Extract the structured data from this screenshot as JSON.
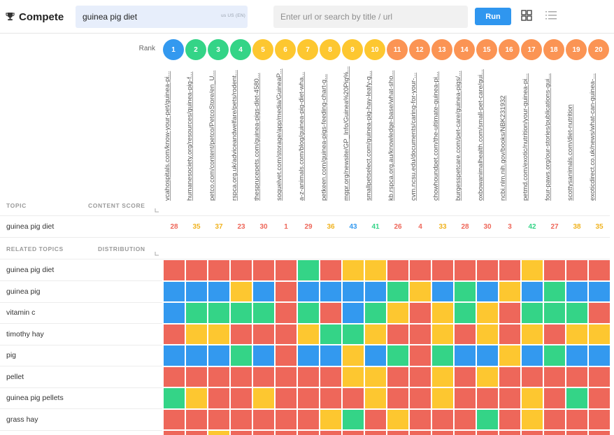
{
  "app": {
    "title": "Compete",
    "icon": "trophy-icon"
  },
  "search": {
    "keyword": "guinea pig diet",
    "locale": "us  US (EN)",
    "url_placeholder": "Enter url or search by title / url",
    "run_label": "Run"
  },
  "view_icons": [
    "grid-view-icon",
    "list-view-icon"
  ],
  "rank_label": "Rank",
  "colors": {
    "red": "#ee675a",
    "yellow": "#fdc730",
    "green": "#34d487",
    "blue": "#3399ef",
    "orange": "#fb9454",
    "accent": "#2f96ef"
  },
  "ranks": [
    {
      "n": "1",
      "color": "blue"
    },
    {
      "n": "2",
      "color": "green"
    },
    {
      "n": "3",
      "color": "green"
    },
    {
      "n": "4",
      "color": "green"
    },
    {
      "n": "5",
      "color": "yellow"
    },
    {
      "n": "6",
      "color": "yellow"
    },
    {
      "n": "7",
      "color": "yellow"
    },
    {
      "n": "8",
      "color": "yellow"
    },
    {
      "n": "9",
      "color": "yellow"
    },
    {
      "n": "10",
      "color": "yellow"
    },
    {
      "n": "11",
      "color": "orange"
    },
    {
      "n": "12",
      "color": "orange"
    },
    {
      "n": "13",
      "color": "orange"
    },
    {
      "n": "14",
      "color": "orange"
    },
    {
      "n": "15",
      "color": "orange"
    },
    {
      "n": "16",
      "color": "orange"
    },
    {
      "n": "17",
      "color": "orange"
    },
    {
      "n": "18",
      "color": "orange"
    },
    {
      "n": "19",
      "color": "orange"
    },
    {
      "n": "20",
      "color": "orange"
    }
  ],
  "urls": [
    "vcahospitals.com/know-your-pet/guinea-pi...",
    "humanesociety.org/resources/guinea-pig-f...",
    "petco.com/content/petco/PetcoStore/en_U...",
    "rspca.org.uk/adviceandwelfare/pets/rodent...",
    "thesprucepets.com/guinea-pigs-diet-4580...",
    "soquelvet.com/storage/app/media/GuineaP...",
    "a-z-animals.com/blog/guinea-pig-diet-wha...",
    "petkeen.com/guinea-pigs-feeding-chart-g...",
    "mgpr.org/newsite/GP_Info/Guinea%20Pig%...",
    "smallpetselect.com/guinea-pig-hay-leafy-g...",
    "kb.rspca.org.au/knowledge-base/what-sho...",
    "cvm.ncsu.edu/documents/caring-for-your-...",
    "chowhoundpet.com/the-ultimate-guinea-pi...",
    "burgesspetcare.com/pet-care/guinea-pigs/...",
    "oxbowanimalhealth.com/small-pet-care/gui...",
    "ncbi.nlm.nih.gov/books/NBK231932",
    "petmd.com/exotic/nutrition/your-guinea-pi...",
    "four-paws.org/our-stories/publications-gui...",
    "scottysanimals.com/diet-nutrition",
    "exoticdirect.co.uk/news/what-can-guinea-..."
  ],
  "headers": {
    "topic": "TOPIC",
    "content_score": "CONTENT SCORE",
    "related_topics": "RELATED TOPICS",
    "distribution": "DISTRIBUTION"
  },
  "topic": {
    "name": "guinea pig diet",
    "scores": [
      {
        "v": "28",
        "c": "red"
      },
      {
        "v": "35",
        "c": "yellow"
      },
      {
        "v": "37",
        "c": "yellow"
      },
      {
        "v": "23",
        "c": "red"
      },
      {
        "v": "30",
        "c": "red"
      },
      {
        "v": "1",
        "c": "red"
      },
      {
        "v": "29",
        "c": "red"
      },
      {
        "v": "36",
        "c": "yellow"
      },
      {
        "v": "43",
        "c": "blue"
      },
      {
        "v": "41",
        "c": "green"
      },
      {
        "v": "26",
        "c": "red"
      },
      {
        "v": "4",
        "c": "red"
      },
      {
        "v": "33",
        "c": "yellow"
      },
      {
        "v": "28",
        "c": "red"
      },
      {
        "v": "30",
        "c": "red"
      },
      {
        "v": "3",
        "c": "red"
      },
      {
        "v": "42",
        "c": "green"
      },
      {
        "v": "27",
        "c": "red"
      },
      {
        "v": "38",
        "c": "yellow"
      },
      {
        "v": "35",
        "c": "yellow"
      }
    ]
  },
  "related_topics": [
    {
      "name": "guinea pig diet",
      "cells": [
        "R",
        "R",
        "R",
        "R",
        "R",
        "R",
        "G",
        "R",
        "Y",
        "Y",
        "R",
        "R",
        "R",
        "R",
        "R",
        "R",
        "Y",
        "R",
        "R",
        "R"
      ]
    },
    {
      "name": "guinea pig",
      "cells": [
        "B",
        "B",
        "B",
        "Y",
        "B",
        "R",
        "B",
        "B",
        "B",
        "B",
        "G",
        "Y",
        "B",
        "G",
        "B",
        "Y",
        "B",
        "G",
        "B",
        "B"
      ]
    },
    {
      "name": "vitamin c",
      "cells": [
        "B",
        "G",
        "G",
        "G",
        "G",
        "R",
        "G",
        "R",
        "B",
        "G",
        "Y",
        "R",
        "Y",
        "G",
        "Y",
        "R",
        "G",
        "G",
        "G",
        "R"
      ]
    },
    {
      "name": "timothy hay",
      "cells": [
        "R",
        "Y",
        "Y",
        "R",
        "R",
        "R",
        "Y",
        "G",
        "G",
        "Y",
        "R",
        "R",
        "Y",
        "R",
        "Y",
        "R",
        "Y",
        "R",
        "Y",
        "Y"
      ]
    },
    {
      "name": "pig",
      "cells": [
        "B",
        "B",
        "B",
        "G",
        "B",
        "R",
        "B",
        "B",
        "Y",
        "B",
        "G",
        "R",
        "G",
        "B",
        "B",
        "Y",
        "B",
        "G",
        "B",
        "B"
      ]
    },
    {
      "name": "pellet",
      "cells": [
        "R",
        "R",
        "R",
        "R",
        "R",
        "R",
        "R",
        "R",
        "Y",
        "Y",
        "R",
        "R",
        "Y",
        "R",
        "Y",
        "R",
        "R",
        "R",
        "R",
        "R"
      ]
    },
    {
      "name": "guinea pig pellets",
      "cells": [
        "G",
        "Y",
        "R",
        "R",
        "Y",
        "R",
        "R",
        "R",
        "R",
        "Y",
        "R",
        "R",
        "Y",
        "R",
        "R",
        "R",
        "Y",
        "R",
        "G",
        "R"
      ]
    },
    {
      "name": "grass hay",
      "cells": [
        "R",
        "R",
        "R",
        "R",
        "R",
        "R",
        "R",
        "Y",
        "G",
        "R",
        "Y",
        "R",
        "R",
        "R",
        "G",
        "R",
        "Y",
        "R",
        "R",
        "R"
      ]
    },
    {
      "name": "",
      "cells": [
        "R",
        "R",
        "Y",
        "R",
        "R",
        "R",
        "R",
        "R",
        "R",
        "R",
        "R",
        "R",
        "R",
        "R",
        "R",
        "R",
        "R",
        "R",
        "R",
        "R"
      ]
    }
  ]
}
